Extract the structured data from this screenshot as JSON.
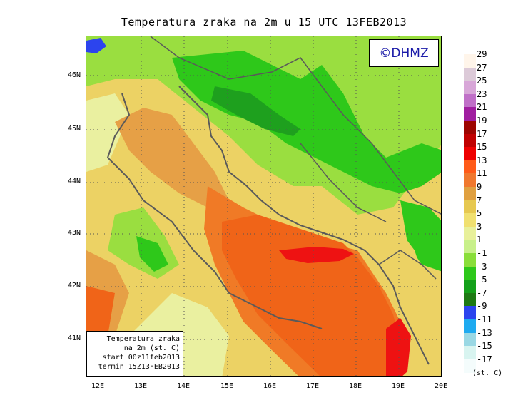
{
  "title": "Temperatura zraka na 2m u 15 UTC 13FEB2013",
  "copyright": "©DHMZ",
  "info_box": {
    "line1": "Temperatura zraka",
    "line2": "na 2m (st. C)",
    "line3": "start 00z11feb2013",
    "line4": "termin 15Z13FEB2013"
  },
  "latitude_labels": [
    "46N",
    "45N",
    "44N",
    "43N",
    "42N",
    "41N"
  ],
  "longitude_labels": [
    "12E",
    "13E",
    "14E",
    "15E",
    "16E",
    "17E",
    "18E",
    "19E",
    "20E"
  ],
  "legend": {
    "unit": "(st. C)",
    "labels": [
      "29",
      "27",
      "25",
      "23",
      "21",
      "19",
      "17",
      "15",
      "13",
      "11",
      "9",
      "7",
      "5",
      "3",
      "1",
      "-1",
      "-3",
      "-5",
      "-7",
      "-9",
      "-11",
      "-13",
      "-15",
      "-17"
    ],
    "colors": [
      "#fff5ea",
      "#dccad8",
      "#d8a7d8",
      "#c070c8",
      "#a01ea0",
      "#9c0400",
      "#c00000",
      "#ee0000",
      "#ff5a18",
      "#f0782e",
      "#e0a040",
      "#e6c850",
      "#f0e070",
      "#e8f09a",
      "#c8f08a",
      "#8ade3a",
      "#2ec81a",
      "#14a01a",
      "#1e7a14",
      "#2c44ee",
      "#1eaaf0",
      "#9ad8e4",
      "#d8f4f0",
      "#f4fcfc"
    ]
  },
  "map_colors": {
    "sea_warm": "#f06418",
    "sea_mid": "#f07a26",
    "sea_hot": "#ee1212",
    "coast_land": "#e6a046",
    "land_yellow": "#ecd264",
    "land_light": "#eaf0a0",
    "land_green_light": "#9ade40",
    "land_green": "#2ec81a",
    "land_green_dark": "#1ea01e",
    "cold_blue": "#2c44ee",
    "coastline": "#5a5a5a"
  }
}
